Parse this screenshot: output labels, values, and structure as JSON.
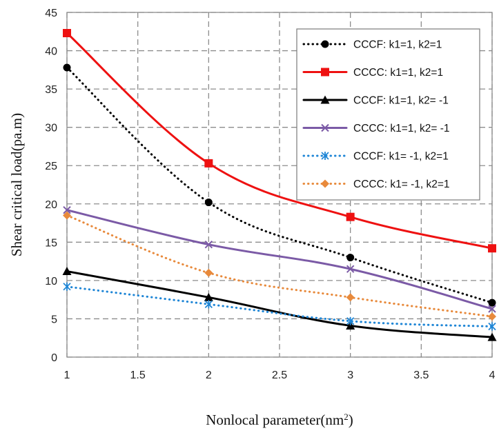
{
  "chart_data": {
    "type": "line",
    "xlabel": "Nonlocal parameter(nm",
    "xlabel_sup": "2",
    "xlabel_end": ")",
    "ylabel": "Shear critical load(pa.m)",
    "xlim": [
      1,
      4
    ],
    "ylim": [
      0,
      45
    ],
    "xticks": [
      "1",
      "1.5",
      "2",
      "2.5",
      "3",
      "3.5",
      "4"
    ],
    "yticks": [
      "0",
      "5",
      "10",
      "15",
      "20",
      "25",
      "30",
      "35",
      "40",
      "45"
    ],
    "grid": true,
    "grid_style": "dashed",
    "legend_position": "top-right",
    "x": [
      1,
      2,
      3,
      4
    ],
    "series": [
      {
        "name": "CCCF: k1=1, k2=1",
        "values": [
          37.8,
          20.2,
          13.0,
          7.1
        ],
        "color": "#000000",
        "line_style": "dotted",
        "marker": "circle"
      },
      {
        "name": "CCCC: k1=1,  k2=1",
        "values": [
          42.3,
          25.3,
          18.3,
          14.2
        ],
        "color": "#ee1111",
        "line_style": "solid",
        "marker": "square"
      },
      {
        "name": "CCCF: k1=1, k2= -1",
        "values": [
          11.2,
          7.8,
          4.1,
          2.6
        ],
        "color": "#000000",
        "line_style": "solid",
        "marker": "triangle"
      },
      {
        "name": "CCCC: k1=1, k2= -1",
        "values": [
          19.2,
          14.7,
          11.5,
          6.3
        ],
        "color": "#7b5aa6",
        "line_style": "solid",
        "marker": "x"
      },
      {
        "name": "CCCF: k1= -1,  k2=1",
        "values": [
          9.2,
          6.9,
          4.7,
          4.0
        ],
        "color": "#1f86d6",
        "line_style": "dotted",
        "marker": "asterisk"
      },
      {
        "name": "CCCC: k1= -1, k2=1",
        "values": [
          18.5,
          11.0,
          7.8,
          5.3
        ],
        "color": "#e88a3c",
        "line_style": "dotted",
        "marker": "diamond"
      }
    ]
  }
}
